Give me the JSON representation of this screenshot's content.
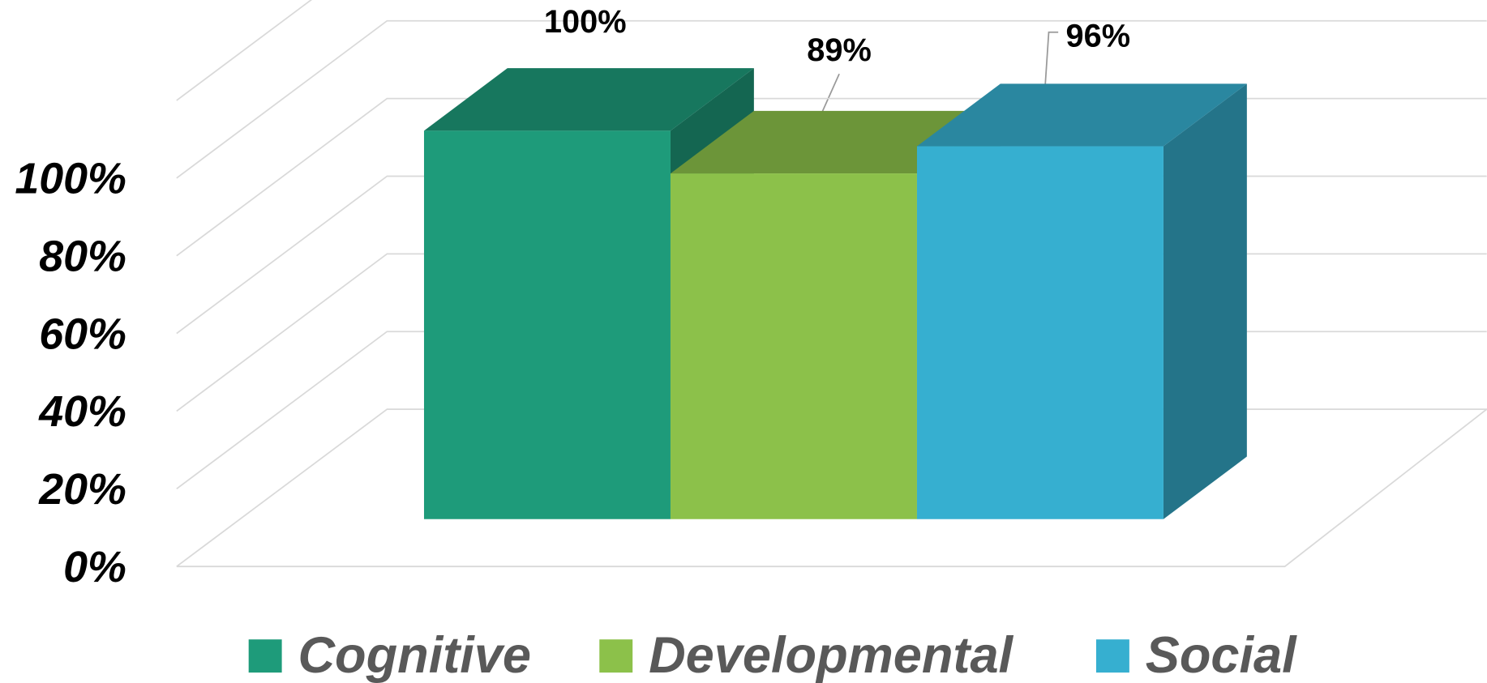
{
  "chart_data": {
    "type": "bar3d",
    "ylim": [
      0,
      120
    ],
    "yticks": [
      {
        "value": 0,
        "label": "0%"
      },
      {
        "value": 20,
        "label": "20%"
      },
      {
        "value": 40,
        "label": "40%"
      },
      {
        "value": 60,
        "label": "60%"
      },
      {
        "value": 80,
        "label": "80%"
      },
      {
        "value": 100,
        "label": "100%"
      }
    ],
    "grid": true,
    "legend": "bottom",
    "series": [
      {
        "name": "Cognitive",
        "color": "#1e9b7a",
        "values": [
          100
        ],
        "value_labels": [
          "100%"
        ]
      },
      {
        "name": "Developmental",
        "color": "#8cc14a",
        "values": [
          89
        ],
        "value_labels": [
          "89%"
        ]
      },
      {
        "name": "Social",
        "color": "#36afd0",
        "values": [
          96
        ],
        "value_labels": [
          "96%"
        ]
      }
    ]
  }
}
